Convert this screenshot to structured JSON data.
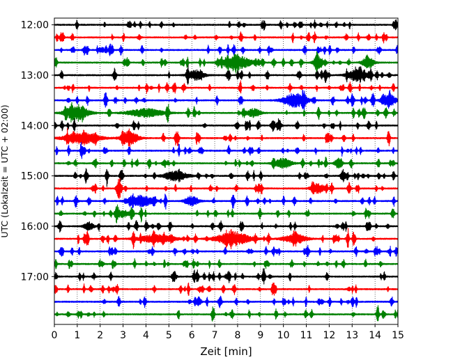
{
  "chart_data": {
    "type": "line",
    "title": "",
    "xlabel": "Zeit  [min]",
    "ylabel": "UTC (Lokalzeit = UTC + 02:00)",
    "xlim": [
      0,
      15
    ],
    "x_ticks": [
      0,
      1,
      2,
      3,
      4,
      5,
      6,
      7,
      8,
      9,
      10,
      11,
      12,
      13,
      14,
      15
    ],
    "y_time_range": [
      "11:52",
      "17:57"
    ],
    "y_ticks": [
      "12:00",
      "13:00",
      "14:00",
      "15:00",
      "16:00",
      "17:00"
    ],
    "trace_interval_minutes": 15,
    "first_trace_start": "12:00",
    "traces_count": 24,
    "trace_color_cycle": [
      "#000000",
      "#ff0000",
      "#0000ff",
      "#008000"
    ],
    "grid": "vertical dotted lines at each minute",
    "legend": "none",
    "series": [
      {
        "start": "12:00",
        "color": "#000000",
        "bursts": []
      },
      {
        "start": "12:15",
        "color": "#ff0000",
        "bursts": []
      },
      {
        "start": "12:30",
        "color": "#0000ff",
        "bursts": []
      },
      {
        "start": "12:45",
        "color": "#008000",
        "bursts": [
          {
            "t": 8.0,
            "width": 1.2,
            "amp": 0.9
          },
          {
            "t": 11.5,
            "width": 0.4,
            "amp": 0.9
          },
          {
            "t": 13.7,
            "width": 0.5,
            "amp": 0.8
          }
        ]
      },
      {
        "start": "13:00",
        "color": "#000000",
        "bursts": [
          {
            "t": 6.2,
            "width": 0.7,
            "amp": 0.7
          },
          {
            "t": 13.2,
            "width": 0.8,
            "amp": 0.8
          }
        ]
      },
      {
        "start": "13:15",
        "color": "#ff0000",
        "bursts": []
      },
      {
        "start": "13:30",
        "color": "#0000ff",
        "bursts": [
          {
            "t": 10.5,
            "width": 1.0,
            "amp": 1.0
          },
          {
            "t": 14.6,
            "width": 0.6,
            "amp": 0.9
          }
        ]
      },
      {
        "start": "13:45",
        "color": "#008000",
        "bursts": [
          {
            "t": 1.0,
            "width": 1.0,
            "amp": 1.0
          },
          {
            "t": 4.0,
            "width": 1.5,
            "amp": 0.6
          },
          {
            "t": 8.7,
            "width": 0.6,
            "amp": 0.6
          }
        ]
      },
      {
        "start": "14:00",
        "color": "#000000",
        "bursts": [
          {
            "t": 9.8,
            "width": 0.2,
            "amp": 1.0
          }
        ]
      },
      {
        "start": "14:15",
        "color": "#ff0000",
        "bursts": [
          {
            "t": 1.2,
            "width": 1.5,
            "amp": 0.8
          },
          {
            "t": 3.3,
            "width": 0.7,
            "amp": 1.0
          }
        ]
      },
      {
        "start": "14:30",
        "color": "#0000ff",
        "bursts": []
      },
      {
        "start": "14:45",
        "color": "#008000",
        "bursts": [
          {
            "t": 10.0,
            "width": 0.7,
            "amp": 0.7
          },
          {
            "t": 12.4,
            "width": 0.3,
            "amp": 0.8
          }
        ]
      },
      {
        "start": "15:00",
        "color": "#000000",
        "bursts": [
          {
            "t": 5.3,
            "width": 1.0,
            "amp": 0.7
          },
          {
            "t": 12.6,
            "width": 0.2,
            "amp": 1.0
          }
        ]
      },
      {
        "start": "15:15",
        "color": "#ff0000",
        "bursts": [
          {
            "t": 11.5,
            "width": 0.6,
            "amp": 0.7
          }
        ]
      },
      {
        "start": "15:30",
        "color": "#0000ff",
        "bursts": [
          {
            "t": 3.8,
            "width": 1.0,
            "amp": 0.8
          },
          {
            "t": 6.0,
            "width": 0.6,
            "amp": 0.7
          }
        ]
      },
      {
        "start": "15:45",
        "color": "#008000",
        "bursts": [
          {
            "t": 3.0,
            "width": 0.5,
            "amp": 0.5
          }
        ]
      },
      {
        "start": "16:00",
        "color": "#000000",
        "bursts": [
          {
            "t": 1.5,
            "width": 0.4,
            "amp": 0.6
          }
        ]
      },
      {
        "start": "16:15",
        "color": "#ff0000",
        "bursts": [
          {
            "t": 7.8,
            "width": 1.4,
            "amp": 1.0
          },
          {
            "t": 4.5,
            "width": 1.5,
            "amp": 0.6
          },
          {
            "t": 10.5,
            "width": 1.0,
            "amp": 0.6
          }
        ]
      },
      {
        "start": "16:30",
        "color": "#0000ff",
        "bursts": []
      },
      {
        "start": "16:45",
        "color": "#008000",
        "bursts": []
      },
      {
        "start": "17:00",
        "color": "#000000",
        "bursts": []
      },
      {
        "start": "17:15",
        "color": "#ff0000",
        "bursts": []
      },
      {
        "start": "17:30",
        "color": "#0000ff",
        "bursts": []
      },
      {
        "start": "17:45",
        "color": "#008000",
        "bursts": []
      }
    ]
  }
}
